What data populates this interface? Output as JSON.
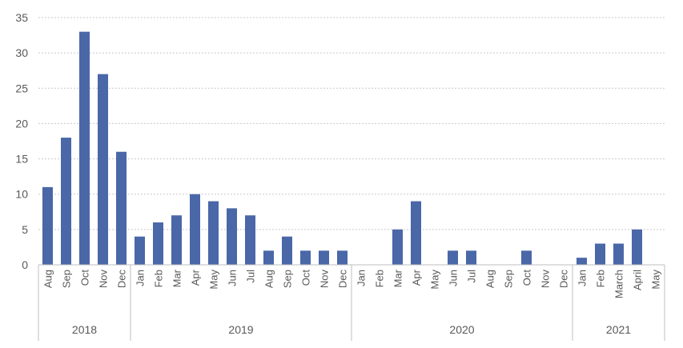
{
  "chart_data": {
    "type": "bar",
    "colors": {
      "bar": "#4a67a8",
      "grid": "#c9c9c9",
      "axis": "#bfbfbf",
      "text": "#595959"
    },
    "ylim": [
      0,
      35
    ],
    "y_ticks": [
      0,
      5,
      10,
      15,
      20,
      25,
      30,
      35
    ],
    "grid": true,
    "categories": [
      "Aug",
      "Sep",
      "Oct",
      "Nov",
      "Dec",
      "Jan",
      "Feb",
      "Mar",
      "Apr",
      "May",
      "Jun",
      "Jul",
      "Aug",
      "Sep",
      "Oct",
      "Nov",
      "Dec",
      "Jan",
      "Feb",
      "Mar",
      "Apr",
      "May",
      "Jun",
      "Jul",
      "Aug",
      "Sep",
      "Oct",
      "Nov",
      "Dec",
      "Jan",
      "Feb",
      "March",
      "April",
      "May"
    ],
    "groups": [
      {
        "label": "2018",
        "count": 5
      },
      {
        "label": "2019",
        "count": 12
      },
      {
        "label": "2020",
        "count": 12
      },
      {
        "label": "2021",
        "count": 5
      }
    ],
    "series": [
      {
        "values": [
          11,
          18,
          33,
          27,
          16,
          4,
          6,
          7,
          10,
          9,
          8,
          7,
          2,
          4,
          2,
          2,
          2,
          0,
          0,
          5,
          9,
          0,
          2,
          2,
          0,
          0,
          2,
          0,
          0,
          1,
          3,
          3,
          5,
          0
        ]
      }
    ]
  }
}
